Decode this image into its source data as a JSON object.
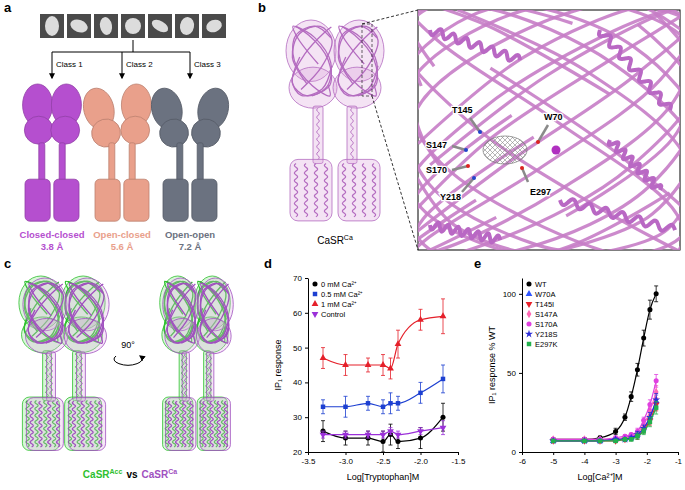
{
  "panel_labels": [
    "a",
    "b",
    "c",
    "d",
    "e"
  ],
  "panel_a": {
    "classes": [
      {
        "name": "Class 1",
        "state": "Closed-closed",
        "resolution": "3.8 Å",
        "color": "#b54fcf"
      },
      {
        "name": "Class 2",
        "state": "Open-closed",
        "resolution": "5.6 Å",
        "color": "#e9a08b"
      },
      {
        "name": "Class 3",
        "state": "Open-open",
        "resolution": "7.2 Å",
        "color": "#6b7280"
      }
    ]
  },
  "panel_b": {
    "structure": {
      "base": "CaSR",
      "sup": "Ca"
    },
    "residues": [
      "T145",
      "W70",
      "S147",
      "S170",
      "Y218",
      "E297"
    ]
  },
  "panel_c": {
    "rotation": "90°",
    "left": {
      "base": "CaSR",
      "sup": "Acc",
      "color": "#2fbf2f"
    },
    "separator": "vs",
    "right": {
      "base": "CaSR",
      "sup": "Ca",
      "color": "#a050bf"
    }
  },
  "chart_data": [
    {
      "type": "line",
      "xlabel": "Log[Tryptophan]M",
      "ylabel": "IP₁ response",
      "x": [
        -3.3,
        -3.0,
        -2.7,
        -2.5,
        -2.4,
        -2.3,
        -2.0,
        -1.7
      ],
      "xlim": [
        -3.5,
        -1.5
      ],
      "xticks": [
        -3.5,
        {
          "value": -3,
          "label": "-3.0"
        },
        -2.5,
        {
          "value": -2,
          "label": "-2.0"
        },
        -1.5
      ],
      "ylim": [
        20,
        70
      ],
      "yticks": [
        20,
        30,
        40,
        50,
        60,
        70
      ],
      "legend": "upper left",
      "series": [
        {
          "name": "0 mM Ca²⁺",
          "color": "#000000",
          "marker": "circle",
          "values": [
            26,
            24,
            24,
            23,
            25,
            23,
            24,
            30
          ],
          "errors": [
            3,
            2,
            2,
            3,
            3,
            2,
            3,
            4
          ]
        },
        {
          "name": "0.5 mM Ca²⁺",
          "color": "#1c3fd1",
          "marker": "square",
          "values": [
            33,
            33,
            34,
            33,
            34,
            34,
            37,
            41
          ],
          "errors": [
            2,
            3,
            2,
            2,
            3,
            2,
            3,
            4
          ]
        },
        {
          "name": "1 mM Ca²⁺",
          "color": "#e5202a",
          "marker": "triangle",
          "values": [
            47,
            45,
            45,
            45,
            44,
            51,
            58,
            59
          ],
          "errors": [
            3,
            3,
            2,
            3,
            3,
            4,
            3,
            5
          ]
        },
        {
          "name": "Control",
          "color": "#9b30d9",
          "marker": "triangle-down",
          "values": [
            25,
            25,
            25,
            25,
            26,
            25,
            26,
            27
          ],
          "errors": [
            1,
            1,
            1,
            1,
            1,
            1,
            1,
            2
          ]
        }
      ]
    },
    {
      "type": "line",
      "xlabel": "Log[Ca²⁺]M",
      "ylabel": "IP₁ response % WT",
      "x": [
        -5,
        -4,
        -3.5,
        -3,
        -2.7,
        -2.5,
        -2.3,
        -2.1,
        -1.9,
        -1.7
      ],
      "xlim": [
        -6,
        -1
      ],
      "xticks": [
        -6,
        -5,
        -4,
        -3,
        -2,
        -1
      ],
      "ylim": [
        0,
        110
      ],
      "yticks": [
        0,
        50,
        100
      ],
      "legend": "upper left",
      "series": [
        {
          "name": "WT",
          "color": "#000000",
          "marker": "circle",
          "values": [
            8,
            8,
            9,
            13,
            22,
            35,
            52,
            72,
            90,
            100
          ],
          "errors": [
            1,
            1,
            1,
            2,
            2,
            3,
            4,
            5,
            6,
            5
          ]
        },
        {
          "name": "W70A",
          "color": "#2f55ff",
          "marker": "triangle",
          "values": [
            7,
            7,
            7,
            8,
            8,
            9,
            11,
            15,
            22,
            32
          ],
          "errors": [
            1,
            1,
            1,
            1,
            1,
            1,
            2,
            2,
            3,
            4
          ]
        },
        {
          "name": "T145I",
          "color": "#e8202a",
          "marker": "triangle-down",
          "values": [
            7,
            7,
            7,
            7,
            8,
            9,
            10,
            14,
            20,
            30
          ],
          "errors": [
            1,
            1,
            1,
            1,
            1,
            1,
            2,
            2,
            3,
            4
          ]
        },
        {
          "name": "S147A",
          "color": "#ff69b4",
          "marker": "diamond",
          "values": [
            8,
            8,
            8,
            8,
            9,
            10,
            12,
            17,
            26,
            38
          ],
          "errors": [
            1,
            1,
            1,
            1,
            1,
            1,
            2,
            2,
            3,
            4
          ]
        },
        {
          "name": "S170A",
          "color": "#e040e0",
          "marker": "circle",
          "values": [
            8,
            8,
            8,
            9,
            10,
            11,
            13,
            20,
            30,
            45
          ],
          "errors": [
            1,
            1,
            1,
            1,
            1,
            1,
            2,
            2,
            3,
            4
          ]
        },
        {
          "name": "Y218S",
          "color": "#2b2bd6",
          "marker": "star",
          "values": [
            7,
            7,
            7,
            8,
            8,
            9,
            11,
            15,
            22,
            33
          ],
          "errors": [
            1,
            1,
            1,
            1,
            1,
            1,
            2,
            2,
            3,
            4
          ]
        },
        {
          "name": "E297K",
          "color": "#22b14c",
          "marker": "square",
          "values": [
            7,
            7,
            7,
            7,
            8,
            8,
            10,
            13,
            19,
            28
          ],
          "errors": [
            1,
            1,
            1,
            1,
            1,
            1,
            2,
            2,
            3,
            4
          ]
        }
      ]
    }
  ]
}
